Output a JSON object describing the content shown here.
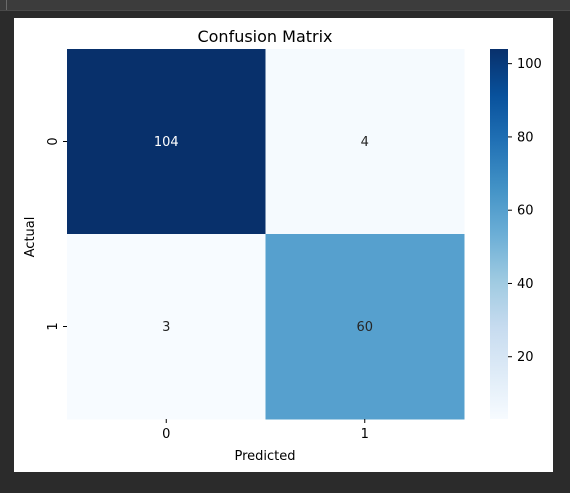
{
  "chart_data": {
    "type": "heatmap",
    "title": "Confusion Matrix",
    "xlabel": "Predicted",
    "ylabel": "Actual",
    "x_categories": [
      "0",
      "1"
    ],
    "y_categories": [
      "0",
      "1"
    ],
    "matrix": [
      [
        104,
        4
      ],
      [
        3,
        60
      ]
    ],
    "colormap": "Blues",
    "colorbar": {
      "range": [
        3,
        104
      ],
      "ticks": [
        20,
        40,
        60,
        80,
        100
      ]
    }
  },
  "colors": {
    "window_bg": "#2b2b2b",
    "figure_bg": "#ffffff",
    "cmap_low": "#f7fbff",
    "cmap_high": "#08306b"
  }
}
